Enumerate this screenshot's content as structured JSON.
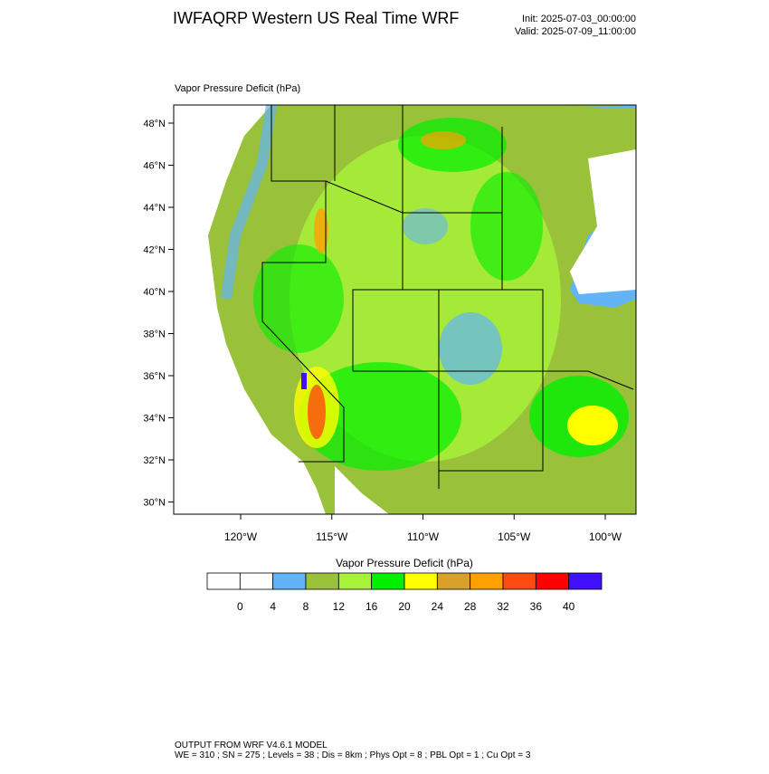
{
  "header": {
    "title": "IWFAQRP Western US Real Time WRF",
    "init": "Init: 2025-07-03_00:00:00",
    "valid": "Valid: 2025-07-09_11:00:00"
  },
  "map": {
    "title": "Vapor Pressure Deficit   (hPa)",
    "lat_ticks": [
      "48°N",
      "46°N",
      "44°N",
      "42°N",
      "40°N",
      "38°N",
      "36°N",
      "34°N",
      "32°N",
      "30°N"
    ],
    "lon_ticks": [
      "120°W",
      "115°W",
      "110°W",
      "105°W",
      "100°W"
    ]
  },
  "colorbar": {
    "title": "Vapor Pressure Deficit  (hPa)",
    "colors": [
      "#ffffff",
      "#ffffff",
      "#63b4f6",
      "#99c13a",
      "#a8f23a",
      "#00f000",
      "#ffff00",
      "#d9a12a",
      "#ffa000",
      "#ff4a10",
      "#ff0000",
      "#4010ff"
    ],
    "levels": [
      0,
      4,
      8,
      12,
      16,
      20,
      24,
      28,
      32,
      36,
      40
    ]
  },
  "footer": {
    "line1": "OUTPUT FROM WRF V4.6.1 MODEL",
    "line2": "WE = 310 ; SN = 275 ; Levels = 38 ; Dis = 8km ; Phys Opt = 8 ; PBL Opt = 1 ; Cu Opt = 3"
  }
}
